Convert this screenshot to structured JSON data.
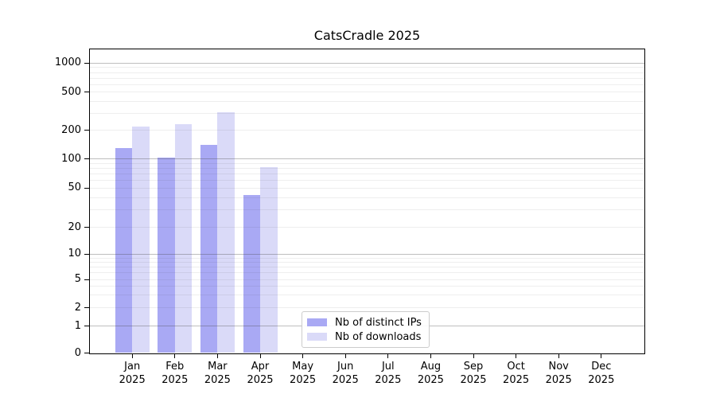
{
  "chart_data": {
    "type": "bar",
    "title": "CatsCradle 2025",
    "x_axis": {
      "months": [
        "Jan",
        "Feb",
        "Mar",
        "Apr",
        "May",
        "Jun",
        "Jul",
        "Aug",
        "Sep",
        "Oct",
        "Nov",
        "Dec"
      ],
      "year": "2025"
    },
    "y_axis": {
      "scale": "symlog",
      "tick_labels": [
        "0",
        "1",
        "2",
        "5",
        "10",
        "20",
        "50",
        "100",
        "200",
        "500",
        "1000"
      ],
      "range": [
        0,
        1200
      ]
    },
    "series": [
      {
        "name": "Nb of distinct IPs",
        "color": "#a9a9f4",
        "values": [
          130,
          103,
          140,
          42,
          null,
          null,
          null,
          null,
          null,
          null,
          null,
          null
        ]
      },
      {
        "name": "Nb of downloads",
        "color": "#dadaf8",
        "values": [
          220,
          230,
          310,
          82,
          null,
          null,
          null,
          null,
          null,
          null,
          null,
          null
        ]
      }
    ],
    "grid": true,
    "legend": {
      "position": "lower-center-inside"
    }
  }
}
